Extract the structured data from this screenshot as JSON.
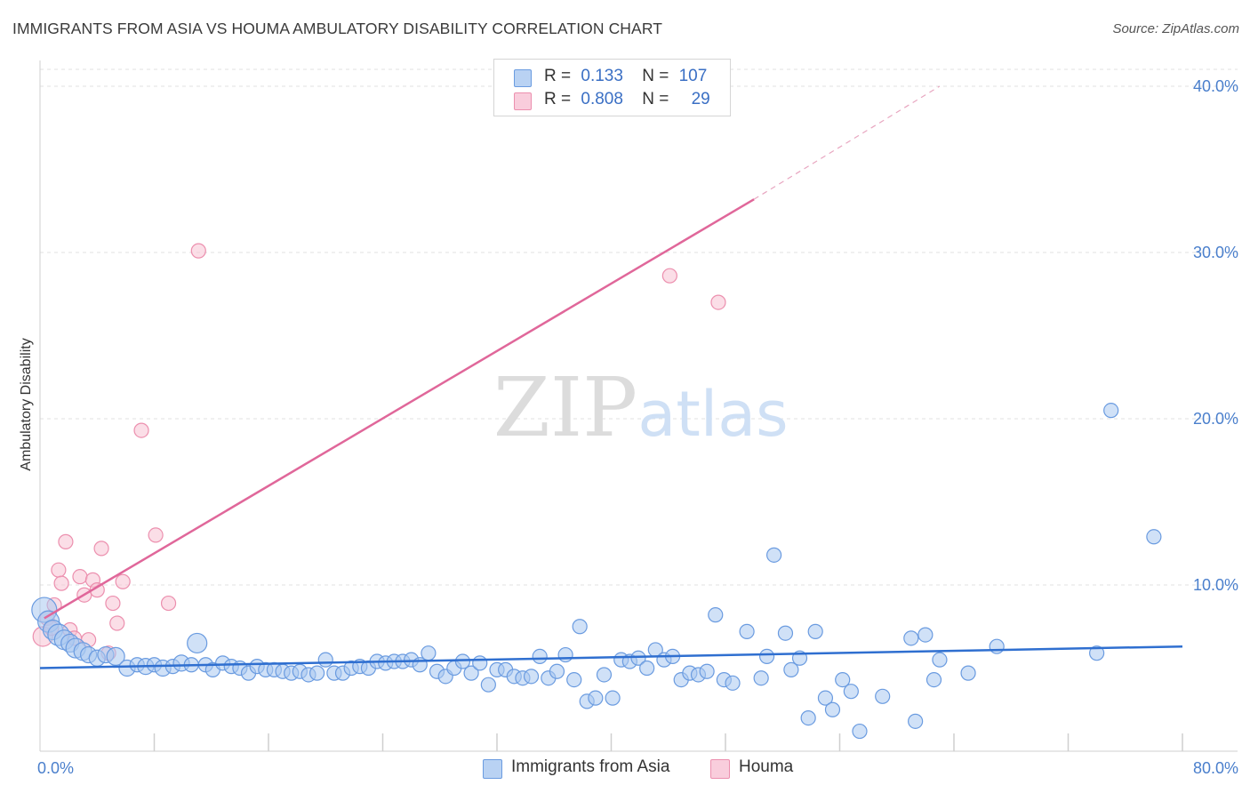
{
  "title": "IMMIGRANTS FROM ASIA VS HOUMA AMBULATORY DISABILITY CORRELATION CHART",
  "source": "Source: ZipAtlas.com",
  "watermark": {
    "zip": "ZIP",
    "atlas": "atlas"
  },
  "legend": {
    "rows": [
      {
        "r_label": "R =",
        "r_value": "0.133",
        "n_label": "N =",
        "n_value": "107"
      },
      {
        "r_label": "R =",
        "r_value": "0.808",
        "n_label": "N =",
        "n_value": "29"
      }
    ]
  },
  "colors": {
    "blue_fill": "#a9c8f0",
    "blue_stroke": "#6a9be0",
    "blue_line": "#2f6fd0",
    "pink_fill": "#f7c3d4",
    "pink_stroke": "#ec8fae",
    "pink_line": "#e0679a",
    "tick_text": "#4a7fcc"
  },
  "chart_data": {
    "type": "scatter",
    "ylabel": "Ambulatory Disability",
    "xlim": [
      0,
      80
    ],
    "ylim": [
      0,
      40
    ],
    "x_tick_labels": [
      "0.0%",
      "80.0%"
    ],
    "y_ticks": [
      10,
      20,
      30,
      40
    ],
    "y_tick_labels": [
      "10.0%",
      "20.0%",
      "30.0%",
      "40.0%"
    ],
    "grid": "horizontal dashed",
    "series": [
      {
        "name": "Immigrants from Asia",
        "color": "#a9c8f0",
        "trend": {
          "x": [
            0,
            80
          ],
          "y": [
            5.0,
            6.3
          ]
        },
        "points": [
          [
            0.3,
            8.5,
            14
          ],
          [
            0.6,
            7.8,
            12
          ],
          [
            0.9,
            7.3,
            11
          ],
          [
            1.3,
            7.0,
            12
          ],
          [
            1.7,
            6.7,
            11
          ],
          [
            2.1,
            6.5,
            10
          ],
          [
            2.5,
            6.2,
            11
          ],
          [
            3.0,
            6.0,
            10
          ],
          [
            3.4,
            5.8,
            9
          ],
          [
            4.0,
            5.6,
            9
          ],
          [
            4.6,
            5.8,
            9
          ],
          [
            5.3,
            5.7,
            10
          ],
          [
            6.1,
            5.0,
            9
          ],
          [
            6.8,
            5.2,
            8
          ],
          [
            7.4,
            5.1,
            9
          ],
          [
            8.0,
            5.2,
            8
          ],
          [
            8.6,
            5.0,
            9
          ],
          [
            9.3,
            5.1,
            8
          ],
          [
            9.9,
            5.3,
            9
          ],
          [
            10.6,
            5.2,
            8
          ],
          [
            11.0,
            6.5,
            11
          ],
          [
            11.6,
            5.2,
            8
          ],
          [
            12.1,
            4.9,
            8
          ],
          [
            12.8,
            5.3,
            8
          ],
          [
            13.4,
            5.1,
            8
          ],
          [
            14.0,
            5.0,
            8
          ],
          [
            14.6,
            4.7,
            8
          ],
          [
            15.2,
            5.1,
            8
          ],
          [
            15.8,
            4.9,
            8
          ],
          [
            16.4,
            4.9,
            8
          ],
          [
            17.0,
            4.8,
            8
          ],
          [
            17.6,
            4.7,
            8
          ],
          [
            18.2,
            4.8,
            8
          ],
          [
            18.8,
            4.6,
            8
          ],
          [
            19.4,
            4.7,
            8
          ],
          [
            20.0,
            5.5,
            8
          ],
          [
            20.6,
            4.7,
            8
          ],
          [
            21.2,
            4.7,
            8
          ],
          [
            21.8,
            5.0,
            8
          ],
          [
            22.4,
            5.1,
            8
          ],
          [
            23.0,
            5.0,
            8
          ],
          [
            23.6,
            5.4,
            8
          ],
          [
            24.2,
            5.3,
            8
          ],
          [
            24.8,
            5.4,
            8
          ],
          [
            25.4,
            5.4,
            8
          ],
          [
            26.0,
            5.5,
            8
          ],
          [
            26.6,
            5.2,
            8
          ],
          [
            27.2,
            5.9,
            8
          ],
          [
            27.8,
            4.8,
            8
          ],
          [
            28.4,
            4.5,
            8
          ],
          [
            29.0,
            5.0,
            8
          ],
          [
            29.6,
            5.4,
            8
          ],
          [
            30.2,
            4.7,
            8
          ],
          [
            30.8,
            5.3,
            8
          ],
          [
            31.4,
            4.0,
            8
          ],
          [
            32.0,
            4.9,
            8
          ],
          [
            32.6,
            4.9,
            8
          ],
          [
            33.2,
            4.5,
            8
          ],
          [
            33.8,
            4.4,
            8
          ],
          [
            34.4,
            4.5,
            8
          ],
          [
            35.0,
            5.7,
            8
          ],
          [
            35.6,
            4.4,
            8
          ],
          [
            36.2,
            4.8,
            8
          ],
          [
            36.8,
            5.8,
            8
          ],
          [
            37.4,
            4.3,
            8
          ],
          [
            37.8,
            7.5,
            8
          ],
          [
            38.3,
            3.0,
            8
          ],
          [
            38.9,
            3.2,
            8
          ],
          [
            39.5,
            4.6,
            8
          ],
          [
            40.1,
            3.2,
            8
          ],
          [
            40.7,
            5.5,
            8
          ],
          [
            41.3,
            5.4,
            8
          ],
          [
            41.9,
            5.6,
            8
          ],
          [
            42.5,
            5.0,
            8
          ],
          [
            43.1,
            6.1,
            8
          ],
          [
            43.7,
            5.5,
            8
          ],
          [
            44.3,
            5.7,
            8
          ],
          [
            44.9,
            4.3,
            8
          ],
          [
            45.5,
            4.7,
            8
          ],
          [
            46.1,
            4.6,
            8
          ],
          [
            46.7,
            4.8,
            8
          ],
          [
            47.3,
            8.2,
            8
          ],
          [
            47.9,
            4.3,
            8
          ],
          [
            48.5,
            4.1,
            8
          ],
          [
            49.5,
            7.2,
            8
          ],
          [
            50.5,
            4.4,
            8
          ],
          [
            50.9,
            5.7,
            8
          ],
          [
            51.4,
            11.8,
            8
          ],
          [
            52.2,
            7.1,
            8
          ],
          [
            52.6,
            4.9,
            8
          ],
          [
            53.2,
            5.6,
            8
          ],
          [
            53.8,
            2.0,
            8
          ],
          [
            54.3,
            7.2,
            8
          ],
          [
            55.0,
            3.2,
            8
          ],
          [
            55.5,
            2.5,
            8
          ],
          [
            56.2,
            4.3,
            8
          ],
          [
            56.8,
            3.6,
            8
          ],
          [
            57.4,
            1.2,
            8
          ],
          [
            59.0,
            3.3,
            8
          ],
          [
            61.0,
            6.8,
            8
          ],
          [
            61.3,
            1.8,
            8
          ],
          [
            62.0,
            7.0,
            8
          ],
          [
            62.6,
            4.3,
            8
          ],
          [
            63.0,
            5.5,
            8
          ],
          [
            65.0,
            4.7,
            8
          ],
          [
            67.0,
            6.3,
            8
          ],
          [
            74.0,
            5.9,
            8
          ],
          [
            75.0,
            20.5,
            8
          ],
          [
            78.0,
            12.9,
            8
          ]
        ]
      },
      {
        "name": "Houma",
        "color": "#f7c3d4",
        "trend": {
          "x": [
            0.3,
            50.0
          ],
          "y": [
            8.0,
            33.2
          ],
          "dashed_extension": {
            "x": [
              50.0,
              63.0
            ],
            "y": [
              33.2,
              40.0
            ]
          }
        },
        "points": [
          [
            0.2,
            6.9,
            11
          ],
          [
            0.5,
            8.0,
            8
          ],
          [
            0.8,
            7.4,
            8
          ],
          [
            1.0,
            8.8,
            8
          ],
          [
            1.3,
            10.9,
            8
          ],
          [
            1.5,
            10.1,
            8
          ],
          [
            1.8,
            12.6,
            8
          ],
          [
            2.1,
            7.3,
            8
          ],
          [
            2.4,
            6.8,
            8
          ],
          [
            2.8,
            10.5,
            8
          ],
          [
            3.1,
            9.4,
            8
          ],
          [
            3.4,
            6.7,
            8
          ],
          [
            3.7,
            10.3,
            8
          ],
          [
            4.0,
            9.7,
            8
          ],
          [
            4.3,
            12.2,
            8
          ],
          [
            4.8,
            5.9,
            8
          ],
          [
            5.1,
            8.9,
            8
          ],
          [
            5.4,
            7.7,
            8
          ],
          [
            5.8,
            10.2,
            8
          ],
          [
            7.1,
            19.3,
            8
          ],
          [
            8.1,
            13.0,
            8
          ],
          [
            9.0,
            8.9,
            8
          ],
          [
            11.1,
            30.1,
            8
          ],
          [
            44.1,
            28.6,
            8
          ],
          [
            47.5,
            27.0,
            8
          ]
        ]
      }
    ]
  },
  "bottom_legend": [
    {
      "label": "Immigrants from Asia"
    },
    {
      "label": "Houma"
    }
  ]
}
